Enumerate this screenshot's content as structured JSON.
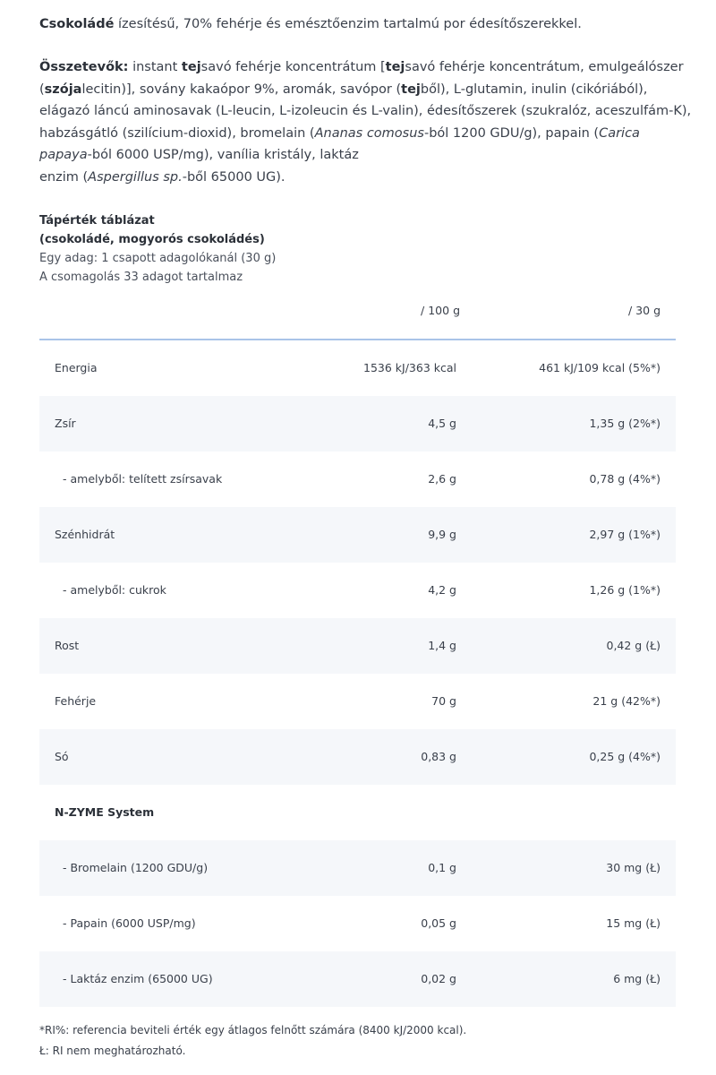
{
  "intro": {
    "flavor": "Csokoládé",
    "text": " ízesítésű, 70% fehérje és emésztőenzim tartalmú por édesítőszerekkel."
  },
  "ingredients": {
    "label": "Összetevők:",
    "parts": {
      "p1": " instant ",
      "b1": "tej",
      "p2": "savó fehérje koncentrátum [",
      "b2": "tej",
      "p3": "savó fehérje koncentrátum, emulgeálószer (",
      "b3": "szója",
      "p4": "lecitin)], sovány kakaópor 9%, aromák, savópor (",
      "b4": "tej",
      "p5": "ből), L-glutamin, inulin (cikóriából), elágazó láncú aminosavak (L-leucin, L-izoleucin és L-valin), édesítőszerek (szukralóz, aceszulfám-K), habzásgátló (szilícium-dioxid), bromelain (",
      "i1": "Ananas comosus",
      "p6": "-ból 1200 GDU/g), papain (",
      "i2": "Carica papaya",
      "p7": "-ból 6000 USP/mg), vanília kristály, laktáz",
      "p8": "enzim (",
      "i3": "Aspergillus sp.",
      "p9": "-ből 65000 UG)."
    }
  },
  "nutrition": {
    "title_line1": "Tápérték táblázat",
    "title_line2": "(csokoládé, mogyorós csokoládés)",
    "serving": "Egy adag: 1 csapott adagolókanál (30 g)",
    "servings_per_pack": "A csomagolás 33 adagot tartalmaz",
    "col_100g": "/ 100 g",
    "col_30g": "/ 30 g",
    "rows": [
      {
        "label": "Energia",
        "v100": "1536 kJ/363 kcal",
        "v30": "461 kJ/109 kcal (5%*)"
      },
      {
        "label": "Zsír",
        "v100": "4,5 g",
        "v30": "1,35 g (2%*)"
      },
      {
        "label": "- amelyből: telített zsírsavak",
        "v100": "2,6 g",
        "v30": "0,78 g (4%*)"
      },
      {
        "label": "Szénhidrát",
        "v100": "9,9 g",
        "v30": "2,97 g (1%*)"
      },
      {
        "label": "- amelyből: cukrok",
        "v100": "4,2 g",
        "v30": "1,26 g (1%*)"
      },
      {
        "label": "Rost",
        "v100": "1,4 g",
        "v30": "0,42 g (Ł)"
      },
      {
        "label": "Fehérje",
        "v100": "70 g",
        "v30": "21 g (42%*)"
      },
      {
        "label": "Só",
        "v100": "0,83 g",
        "v30": "0,25 g (4%*)"
      }
    ],
    "section_label": "N-ZYME System",
    "enzyme_rows": [
      {
        "label": "- Bromelain (1200 GDU/g)",
        "v100": "0,1 g",
        "v30": "30 mg (Ł)"
      },
      {
        "label": "- Papain (6000 USP/mg)",
        "v100": "0,05 g",
        "v30": "15 mg (Ł)"
      },
      {
        "label": "- Laktáz enzim (65000 UG)",
        "v100": "0,02 g",
        "v30": "6 mg (Ł)"
      }
    ]
  },
  "footnotes": {
    "ri": "*RI%: referencia beviteli érték egy átlagos felnőtt számára (8400 kJ/2000 kcal).",
    "na": "Ł: RI nem meghatározható."
  }
}
